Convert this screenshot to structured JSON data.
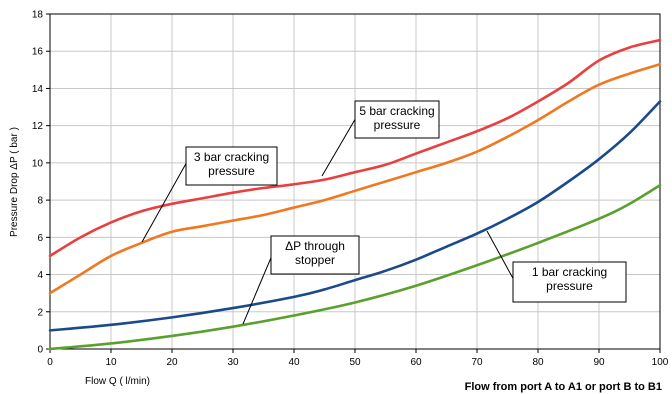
{
  "chart_data": {
    "type": "line",
    "xlabel": "Flow  Q ( l/min)",
    "ylabel": "Pressure Drop ΔP ( bar )",
    "footer_label": "Flow from port A to A1 or port B to B1",
    "xlim": [
      0,
      100
    ],
    "ylim": [
      0,
      18
    ],
    "x_ticks": [
      0,
      10,
      20,
      30,
      40,
      50,
      60,
      70,
      80,
      90,
      100
    ],
    "y_ticks": [
      0,
      2,
      4,
      6,
      8,
      10,
      12,
      14,
      16,
      18
    ],
    "grid": true,
    "series": [
      {
        "color": "#e84040",
        "x": [
          0,
          5,
          10,
          15,
          20,
          25,
          30,
          35,
          40,
          45,
          50,
          55,
          60,
          65,
          70,
          75,
          80,
          85,
          90,
          95,
          100
        ],
        "y": [
          5.0,
          6.0,
          6.8,
          7.4,
          7.8,
          8.1,
          8.4,
          8.65,
          8.85,
          9.1,
          9.5,
          9.9,
          10.5,
          11.1,
          11.7,
          12.4,
          13.3,
          14.3,
          15.5,
          16.2,
          16.6
        ]
      },
      {
        "color": "#f07820",
        "x": [
          0,
          5,
          10,
          15,
          20,
          25,
          30,
          35,
          40,
          45,
          50,
          55,
          60,
          65,
          70,
          75,
          80,
          85,
          90,
          95,
          100
        ],
        "y": [
          3.0,
          4.0,
          5.0,
          5.7,
          6.3,
          6.6,
          6.9,
          7.2,
          7.6,
          8.0,
          8.5,
          9.0,
          9.5,
          10.0,
          10.6,
          11.4,
          12.3,
          13.3,
          14.2,
          14.8,
          15.3
        ]
      },
      {
        "color": "#1a4a8a",
        "x": [
          0,
          10,
          20,
          30,
          40,
          45,
          50,
          55,
          60,
          65,
          70,
          75,
          80,
          85,
          90,
          95,
          100
        ],
        "y": [
          1.0,
          1.3,
          1.7,
          2.2,
          2.8,
          3.2,
          3.7,
          4.2,
          4.8,
          5.5,
          6.2,
          7.0,
          7.9,
          9.0,
          10.2,
          11.6,
          13.3
        ]
      },
      {
        "color": "#5aa02c",
        "x": [
          0,
          10,
          20,
          30,
          40,
          50,
          60,
          70,
          80,
          90,
          95,
          100
        ],
        "y": [
          0.0,
          0.3,
          0.7,
          1.2,
          1.8,
          2.5,
          3.4,
          4.5,
          5.7,
          7.0,
          7.8,
          8.8
        ]
      }
    ],
    "annotations": [
      {
        "lines": [
          "5 bar cracking",
          "pressure"
        ]
      },
      {
        "lines": [
          "3 bar cracking",
          "pressure"
        ]
      },
      {
        "lines": [
          "ΔP through",
          "stopper"
        ]
      },
      {
        "lines": [
          "1 bar cracking",
          "pressure"
        ]
      }
    ]
  }
}
